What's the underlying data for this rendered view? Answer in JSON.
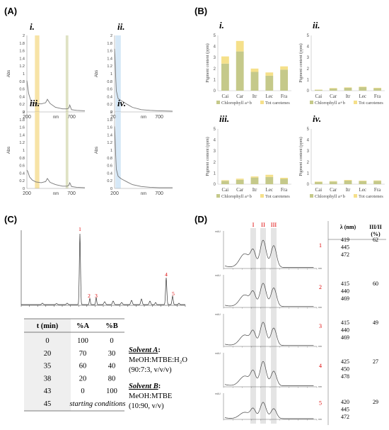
{
  "panels": {
    "A": {
      "label": "(A)",
      "x_ticks": [
        "200",
        "700"
      ],
      "y_ticks": [
        "0",
        "0.2",
        "0.4",
        "0.6",
        "0.8",
        "1",
        "1.2",
        "1.4",
        "1.6",
        "1.8",
        "2"
      ],
      "ylabel": "Abs",
      "xlabel": "nm",
      "colors": {
        "yellow_band": "#f7e3a6",
        "olive_band": "#dfe2c4",
        "blue_band": "#d6e8f7",
        "line": "#777777"
      },
      "charts": [
        {
          "label": "i."
        },
        {
          "label": "ii."
        },
        {
          "label": "iii."
        },
        {
          "label": "iv."
        }
      ]
    },
    "B": {
      "label": "(B)",
      "ylabel": "Pigment content (ppm)",
      "y_ticks": [
        "0",
        "1",
        "2",
        "3",
        "4",
        "5"
      ],
      "legend": [
        "Chlorophyll a+b",
        "Tot carotenes"
      ],
      "colors": {
        "chlorophyll": "#c5c98a",
        "carotenes": "#f5e08a"
      },
      "charts": [
        {
          "label": "i."
        },
        {
          "label": "ii."
        },
        {
          "label": "iii."
        },
        {
          "label": "iv."
        }
      ]
    },
    "C": {
      "label": "(C)",
      "peak_labels": [
        "1",
        "2",
        "3",
        "4",
        "5"
      ],
      "table": {
        "headers": [
          "t (min)",
          "%A",
          "%B"
        ],
        "rows": [
          [
            "0",
            "100",
            "0"
          ],
          [
            "20",
            "70",
            "30"
          ],
          [
            "35",
            "60",
            "40"
          ],
          [
            "38",
            "20",
            "80"
          ],
          [
            "43",
            "0",
            "100"
          ]
        ],
        "last_row": {
          "t": "45",
          "text": "starting conditions"
        }
      },
      "solvent_a": {
        "title": "Solvent A",
        "suffix": ":",
        "line1": "MeOH:MTBE:H₂O",
        "line2": "(90:7:3, v/v/v)"
      },
      "solvent_b": {
        "title": "Solvent B",
        "suffix": ":",
        "line1": "MeOH:MTBE",
        "line2": "(10:90, v/v)"
      }
    },
    "D": {
      "label": "(D)",
      "band_labels": [
        "I",
        "II",
        "III"
      ],
      "header_lambda": "λ (nm)",
      "header_ratio": "III/II",
      "header_ratio_unit": "(%)",
      "y_unit": "mAU",
      "x_unit": "nm",
      "spectra": [
        {
          "peak": "1",
          "lambdas": [
            "419",
            "445",
            "472"
          ],
          "ratio": "62"
        },
        {
          "peak": "2",
          "lambdas": [
            "415",
            "440",
            "469"
          ],
          "ratio": "60"
        },
        {
          "peak": "3",
          "lambdas": [
            "415",
            "440",
            "469"
          ],
          "ratio": "49"
        },
        {
          "peak": "4",
          "lambdas": [
            "425",
            "450",
            "478"
          ],
          "ratio": "27"
        },
        {
          "peak": "5",
          "lambdas": [
            "420",
            "445",
            "472"
          ],
          "ratio": "29"
        }
      ]
    }
  },
  "chart_data": [
    {
      "type": "line",
      "panel": "A-i",
      "xlim": [
        200,
        850
      ],
      "ylim": [
        0,
        2
      ],
      "x": [
        200,
        220,
        250,
        300,
        360,
        410,
        430,
        460,
        520,
        600,
        650,
        670,
        680,
        700,
        760,
        850
      ],
      "y": [
        0.82,
        0.48,
        0.25,
        0.22,
        0.21,
        0.24,
        0.33,
        0.22,
        0.12,
        0.08,
        0.08,
        0.1,
        0.18,
        0.06,
        0.04,
        0.03
      ]
    },
    {
      "type": "line",
      "panel": "A-ii",
      "xlim": [
        200,
        850
      ],
      "ylim": [
        0,
        2
      ],
      "x": [
        200,
        205,
        212,
        220,
        240,
        270,
        300,
        340,
        400,
        500,
        600,
        700,
        850
      ],
      "y": [
        1.65,
        1.45,
        0.95,
        0.55,
        0.35,
        0.3,
        0.26,
        0.2,
        0.12,
        0.06,
        0.04,
        0.03,
        0.02
      ]
    },
    {
      "type": "line",
      "panel": "A-iii",
      "xlim": [
        200,
        850
      ],
      "ylim": [
        0,
        2
      ],
      "x": [
        200,
        210,
        230,
        260,
        300,
        360,
        410,
        430,
        460,
        520,
        600,
        650,
        670,
        680,
        700,
        760,
        850
      ],
      "y": [
        0.48,
        0.44,
        0.3,
        0.22,
        0.17,
        0.15,
        0.18,
        0.26,
        0.16,
        0.1,
        0.06,
        0.06,
        0.08,
        0.15,
        0.05,
        0.03,
        0.02
      ]
    },
    {
      "type": "line",
      "panel": "A-iv",
      "xlim": [
        200,
        850
      ],
      "ylim": [
        0,
        2
      ],
      "x": [
        200,
        205,
        212,
        220,
        240,
        270,
        300,
        340,
        400,
        500,
        600,
        700,
        850
      ],
      "y": [
        1.62,
        1.4,
        0.9,
        0.5,
        0.32,
        0.26,
        0.22,
        0.17,
        0.1,
        0.05,
        0.03,
        0.02,
        0.02
      ]
    },
    {
      "type": "bar",
      "stacked": true,
      "panel": "B-i",
      "ylim": [
        0,
        5
      ],
      "categories": [
        "Cai",
        "Car",
        "Itr",
        "Lec",
        "Fra"
      ],
      "series": [
        {
          "name": "Chlorophyll a+b",
          "values": [
            2.45,
            3.55,
            1.7,
            1.35,
            1.9
          ]
        },
        {
          "name": "Tot carotenes",
          "values": [
            0.65,
            0.95,
            0.3,
            0.3,
            0.3
          ]
        }
      ]
    },
    {
      "type": "bar",
      "stacked": true,
      "panel": "B-ii",
      "ylim": [
        0,
        5
      ],
      "categories": [
        "Cai",
        "Car",
        "Itr",
        "Lec",
        "Fra"
      ],
      "series": [
        {
          "name": "Chlorophyll a+b",
          "values": [
            0.08,
            0.2,
            0.26,
            0.32,
            0.22
          ]
        },
        {
          "name": "Tot carotenes",
          "values": [
            0.02,
            0.04,
            0.04,
            0.04,
            0.04
          ]
        }
      ]
    },
    {
      "type": "bar",
      "stacked": true,
      "panel": "B-iii",
      "ylim": [
        0,
        5
      ],
      "categories": [
        "Cai",
        "Car",
        "Itr",
        "Lec",
        "Fra"
      ],
      "series": [
        {
          "name": "Chlorophyll a+b",
          "values": [
            0.3,
            0.4,
            0.6,
            0.65,
            0.48
          ]
        },
        {
          "name": "Tot carotenes",
          "values": [
            0.06,
            0.1,
            0.1,
            0.2,
            0.1
          ]
        }
      ]
    },
    {
      "type": "bar",
      "stacked": true,
      "panel": "B-iv",
      "ylim": [
        0,
        5
      ],
      "categories": [
        "Cai",
        "Car",
        "Itr",
        "Lec",
        "Fra"
      ],
      "series": [
        {
          "name": "Chlorophyll a+b",
          "values": [
            0.2,
            0.24,
            0.32,
            0.28,
            0.3
          ]
        },
        {
          "name": "Tot carotenes",
          "values": [
            0.04,
            0.04,
            0.06,
            0.04,
            0.04
          ]
        }
      ]
    }
  ]
}
